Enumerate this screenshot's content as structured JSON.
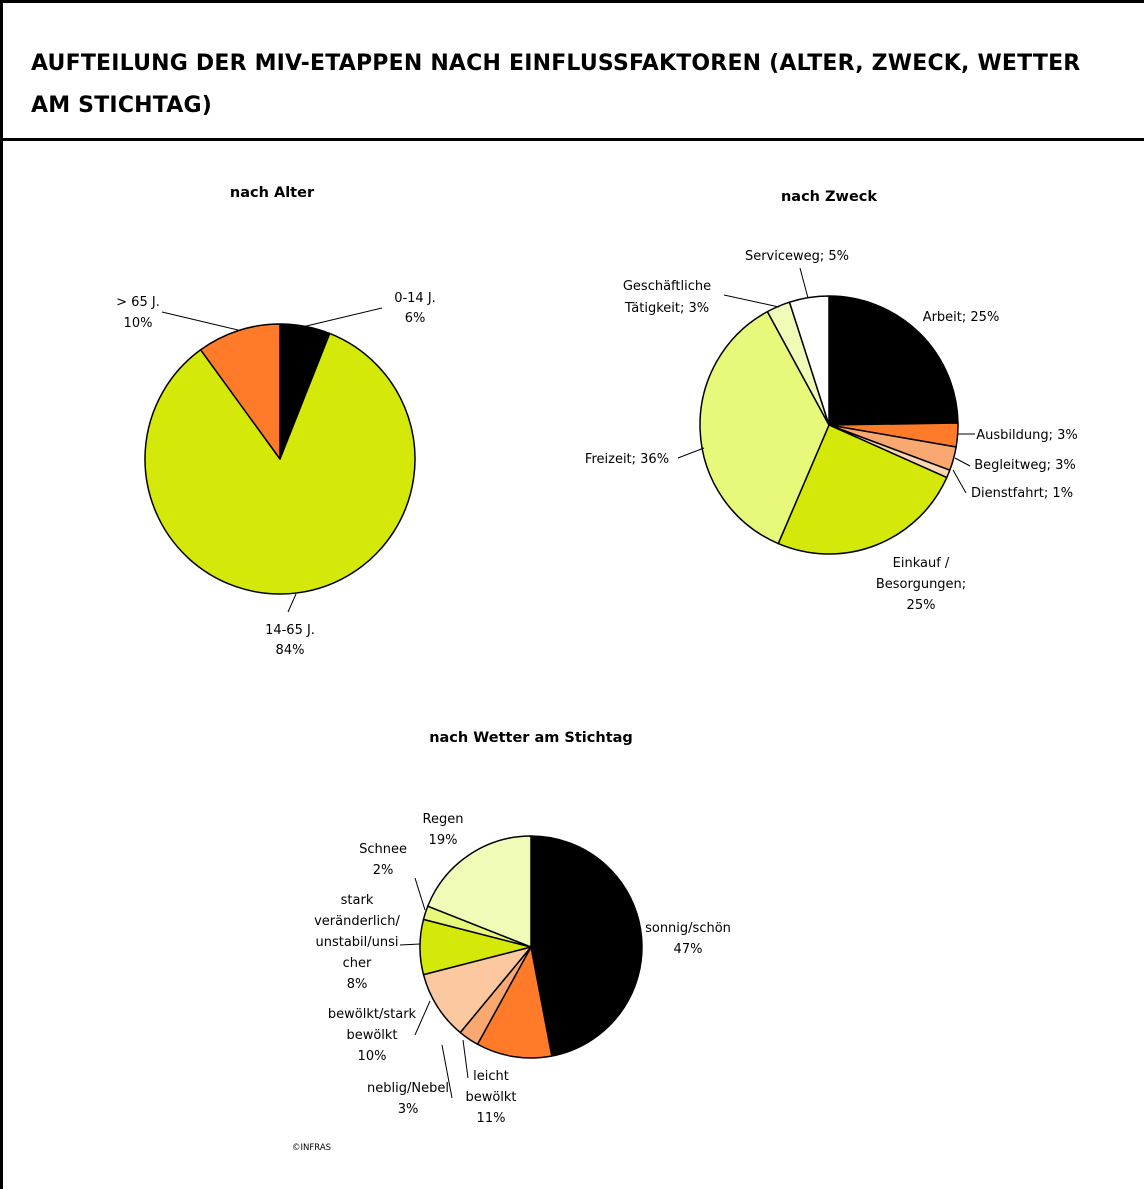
{
  "page": {
    "title": "AUFTEILUNG DER MIV-ETAPPEN NACH EINFLUSSFAKTOREN (ALTER, ZWECK, WETTER AM STICHTAG)",
    "credit": "©INFRAS"
  },
  "chart_data": [
    {
      "type": "pie",
      "title": "nach Alter",
      "slices": [
        {
          "label": "0-14 J.",
          "value": 6,
          "value_label": "6%",
          "color": "#000000"
        },
        {
          "label": "14-65 J.",
          "value": 84,
          "value_label": "84%",
          "color": "#d4e80a"
        },
        {
          "label": "> 65 J.",
          "value": 10,
          "value_label": "10%",
          "color": "#ff7b2a"
        }
      ]
    },
    {
      "type": "pie",
      "title": "nach Zweck",
      "slices": [
        {
          "label": "Arbeit",
          "value": 25,
          "value_label": "25%",
          "color": "#000000"
        },
        {
          "label": "Ausbildung",
          "value": 3,
          "value_label": "3%",
          "color": "#ff7b2a"
        },
        {
          "label": "Begleitweg",
          "value": 3,
          "value_label": "3%",
          "color": "#f8a870"
        },
        {
          "label": "Dienstfahrt",
          "value": 1,
          "value_label": "1%",
          "color": "#fbd6b0"
        },
        {
          "label": "Einkauf / Besorgungen",
          "value": 25,
          "value_label": "25%",
          "color": "#d4e80a"
        },
        {
          "label": "Freizeit",
          "value": 36,
          "value_label": "36%",
          "color": "#e8f87a"
        },
        {
          "label": "Geschäftliche Tätigkeit",
          "value": 3,
          "value_label": "3%",
          "color": "#f0fbb8"
        },
        {
          "label": "Serviceweg",
          "value": 5,
          "value_label": "5%",
          "color": "#ffffff"
        }
      ]
    },
    {
      "type": "pie",
      "title": "nach Wetter am Stichtag",
      "slices": [
        {
          "label": "sonnig/schön",
          "value": 47,
          "value_label": "47%",
          "color": "#000000"
        },
        {
          "label": "leicht bewölkt",
          "value": 11,
          "value_label": "11%",
          "color": "#ff7b2a"
        },
        {
          "label": "neblig/Nebel",
          "value": 3,
          "value_label": "3%",
          "color": "#f8a870"
        },
        {
          "label": "bewölkt/stark bewölkt",
          "value": 10,
          "value_label": "10%",
          "color": "#fcc8a0"
        },
        {
          "label": "stark veränderlich/ unstabil/unsi cher",
          "value": 8,
          "value_label": "8%",
          "color": "#d4e80a"
        },
        {
          "label": "Schnee",
          "value": 2,
          "value_label": "2%",
          "color": "#e8f87a"
        },
        {
          "label": "Regen",
          "value": 19,
          "value_label": "19%",
          "color": "#f0fbb8"
        }
      ]
    }
  ]
}
